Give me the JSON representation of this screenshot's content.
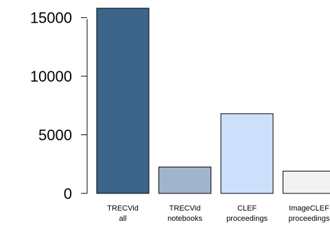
{
  "chart_data": {
    "type": "bar",
    "categories": [
      [
        "TRECVid",
        "all"
      ],
      [
        "TRECVid",
        "notebooks"
      ],
      [
        "CLEF",
        "proceedings"
      ],
      [
        "ImageCLEF",
        "proceedings"
      ]
    ],
    "values": [
      15800,
      2250,
      6800,
      1900
    ],
    "bar_colors": [
      "#3c6589",
      "#a0b4cc",
      "#cce0fb",
      "#f2f2f2"
    ],
    "ylim": [
      0,
      15800
    ],
    "yticks": [
      "0",
      "5000",
      "10000",
      "15000"
    ],
    "ytick_values": [
      0,
      5000,
      10000,
      15000
    ],
    "grid": false,
    "title": "",
    "xlabel": "",
    "ylabel": ""
  }
}
